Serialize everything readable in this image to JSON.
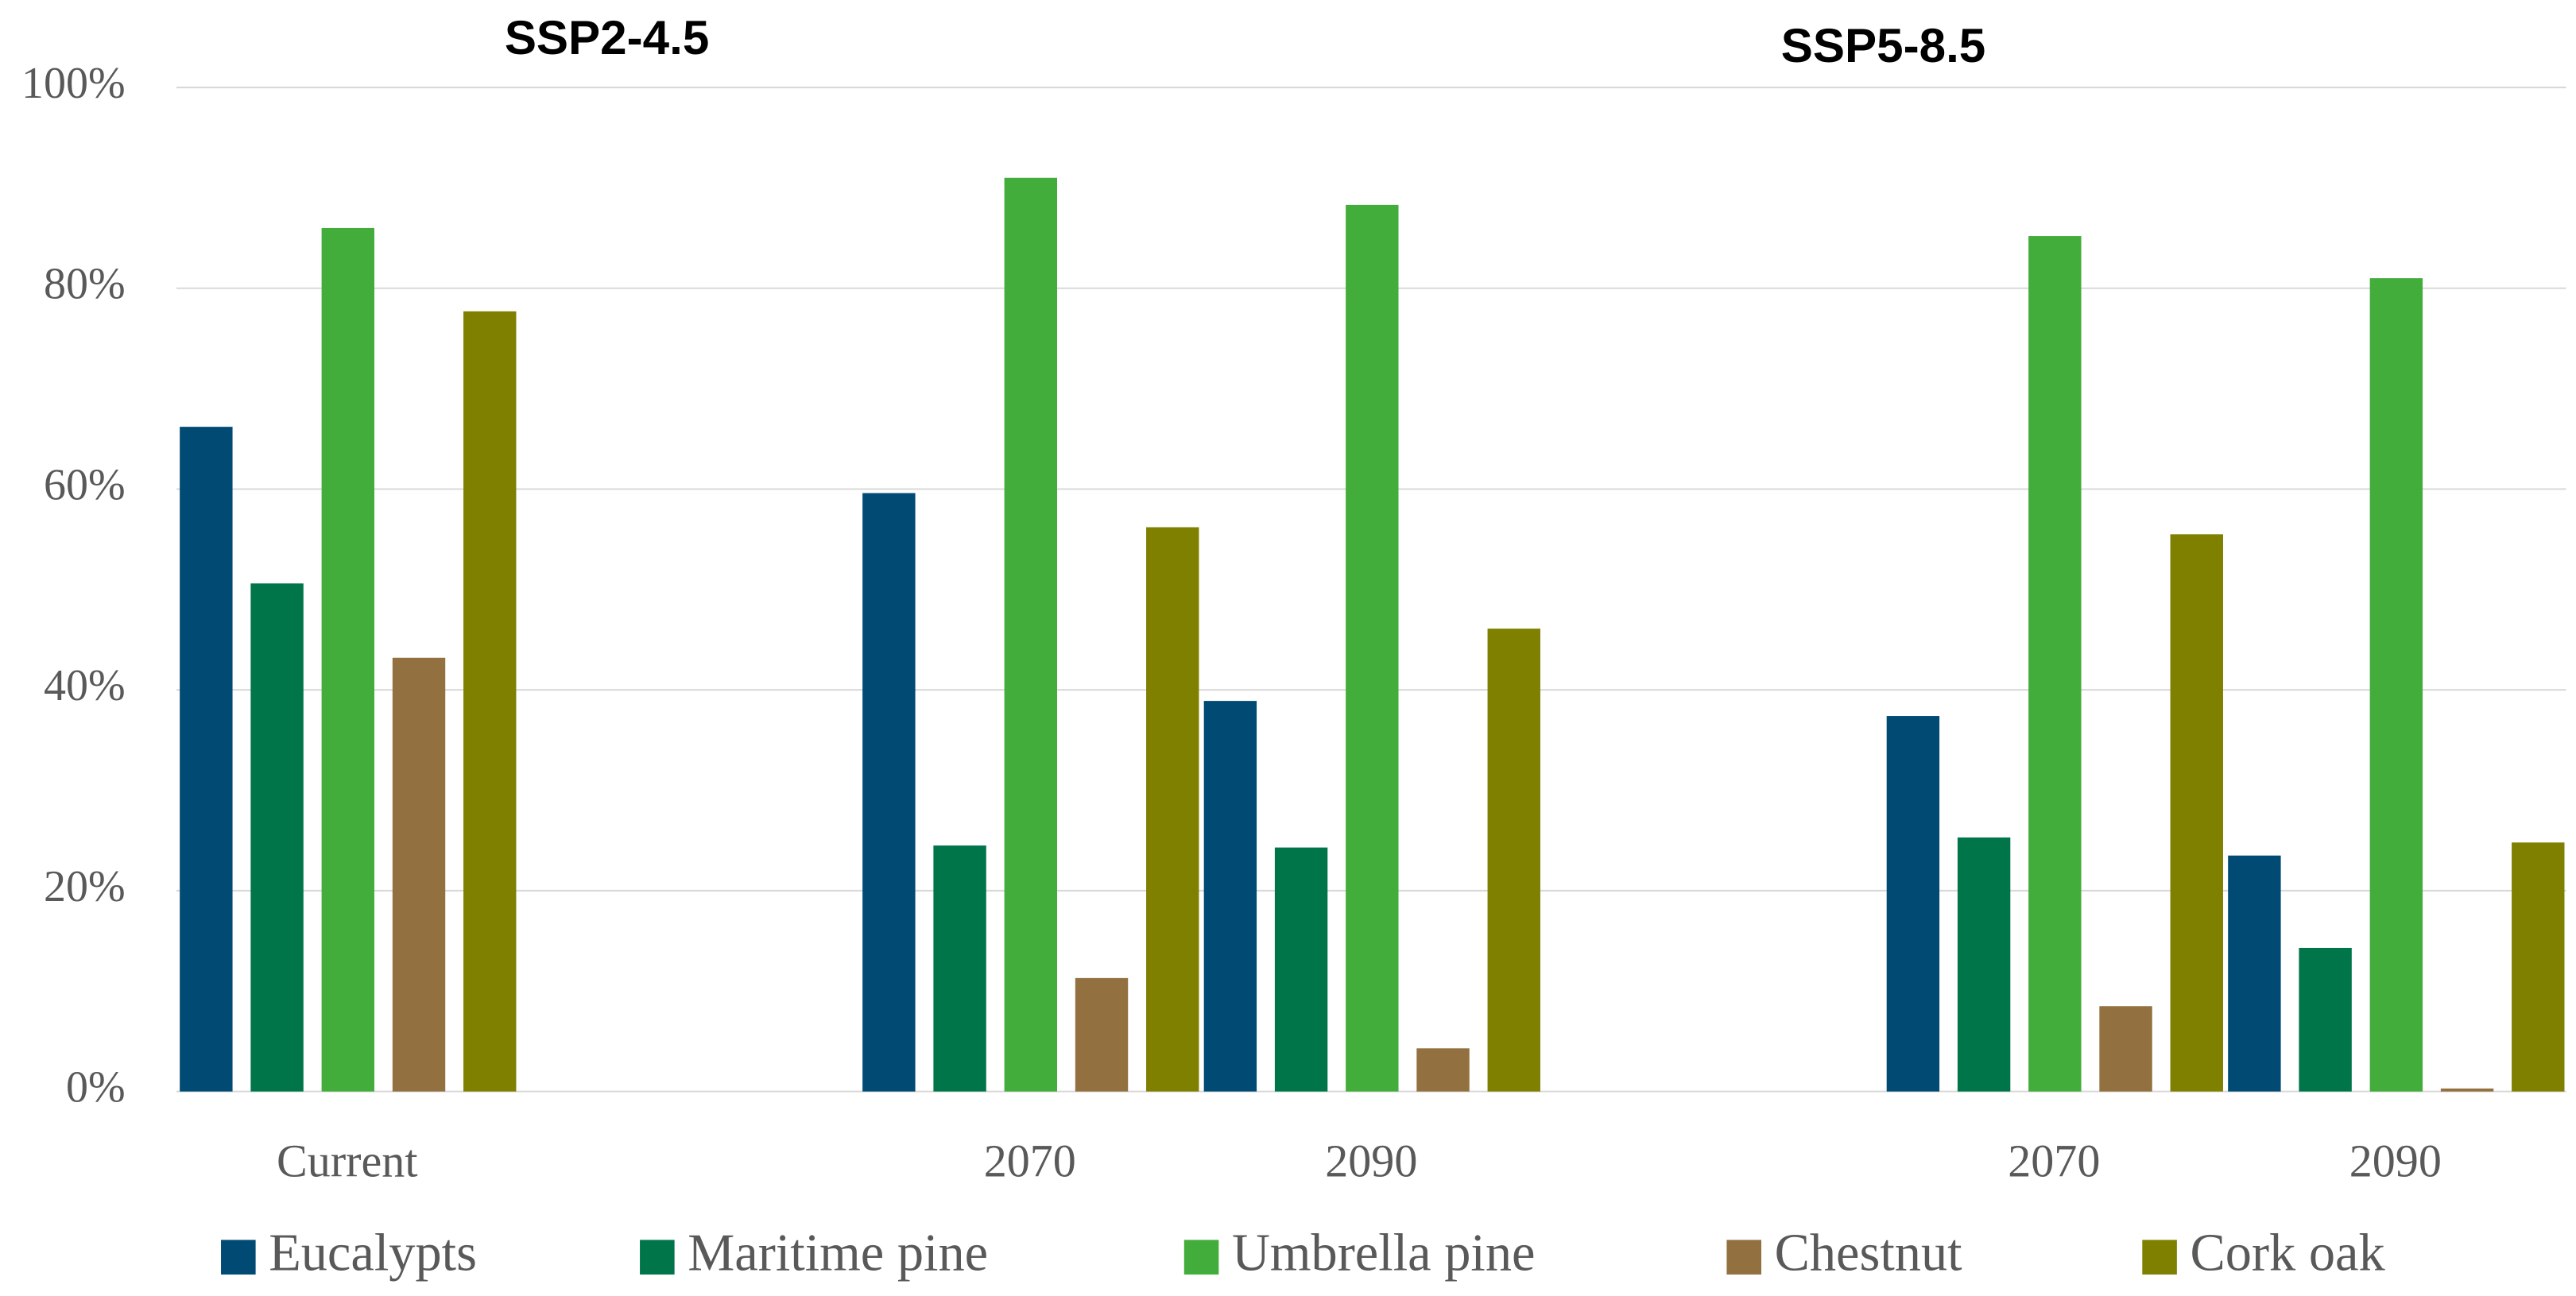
{
  "chart_data": {
    "type": "bar",
    "categories": [
      "Current",
      null,
      "2070",
      "2090",
      null,
      "2070",
      "2090"
    ],
    "series": [
      {
        "name": "Eucalypts",
        "color": "#004a74",
        "values": [
          66.2,
          null,
          59.6,
          38.9,
          null,
          37.4,
          23.5
        ]
      },
      {
        "name": "Maritime pine",
        "color": "#00754a",
        "values": [
          50.6,
          null,
          24.5,
          24.3,
          null,
          25.3,
          14.3
        ]
      },
      {
        "name": "Umbrella pine",
        "color": "#43ad3c",
        "values": [
          86.0,
          null,
          91.0,
          88.3,
          null,
          85.2,
          81.0
        ]
      },
      {
        "name": "Chestnut",
        "color": "#93703f",
        "values": [
          43.2,
          null,
          11.3,
          4.3,
          null,
          8.5,
          0.3
        ]
      },
      {
        "name": "Cork oak",
        "color": "#7f8000",
        "values": [
          77.7,
          null,
          56.2,
          46.1,
          null,
          55.5,
          24.8
        ]
      }
    ],
    "annotations": [
      "SSP2-4.5",
      "SSP5-8.5"
    ],
    "ylim": [
      0,
      100
    ],
    "yticks": [
      {
        "value": 0,
        "label": "0%"
      },
      {
        "value": 20,
        "label": "20%"
      },
      {
        "value": 40,
        "label": "40%"
      },
      {
        "value": 60,
        "label": "60%"
      },
      {
        "value": 80,
        "label": "80%"
      },
      {
        "value": 100,
        "label": "100%"
      }
    ],
    "grid": true,
    "legend": "bottom"
  }
}
